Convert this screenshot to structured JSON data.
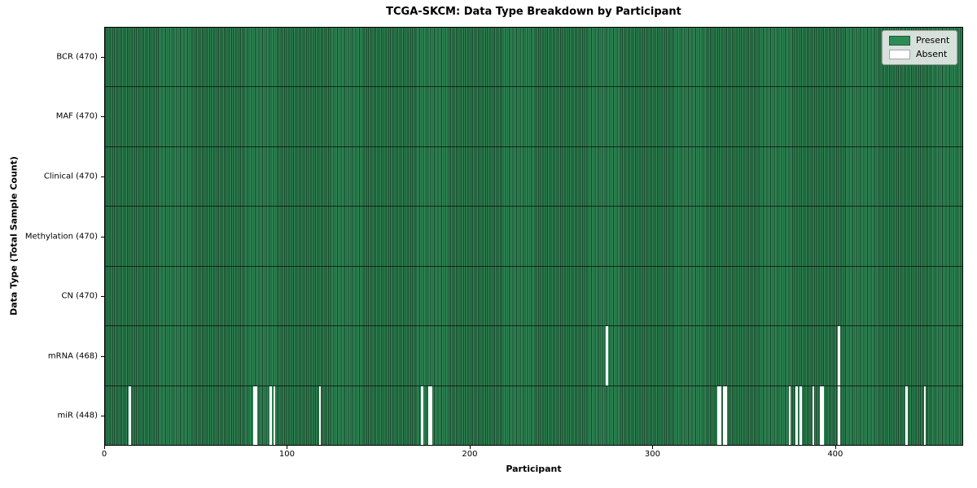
{
  "title": "TCGA-SKCM: Data Type Breakdown by Participant",
  "xlabel": "Participant",
  "ylabel": "Data Type (Total Sample Count)",
  "legend": {
    "present_label": "Present",
    "absent_label": "Absent"
  },
  "chart_data": {
    "type": "heatmap",
    "title": "TCGA-SKCM: Data Type Breakdown by Participant",
    "xlabel": "Participant",
    "ylabel": "Data Type (Total Sample Count)",
    "x_range": [
      0,
      470
    ],
    "x_ticks": [
      0,
      100,
      200,
      300,
      400
    ],
    "n_participants": 470,
    "legend_position": "upper right",
    "legend_entries": [
      "Present",
      "Absent"
    ],
    "colors": {
      "present": "#2e8b57",
      "bar_edge": "#1a4229",
      "absent": "#ffffff",
      "row_separator": "rgba(0,0,0,0.65)",
      "legend_bg": "#f0f0f0"
    },
    "rows": [
      {
        "name": "BCR",
        "label": "BCR (470)",
        "present_count": 470,
        "absent_participants": []
      },
      {
        "name": "MAF",
        "label": "MAF (470)",
        "present_count": 470,
        "absent_participants": []
      },
      {
        "name": "Clinical",
        "label": "Clinical (470)",
        "present_count": 470,
        "absent_participants": []
      },
      {
        "name": "Methylation",
        "label": "Methylation (470)",
        "present_count": 470,
        "absent_participants": []
      },
      {
        "name": "CN",
        "label": "CN (470)",
        "present_count": 470,
        "absent_participants": []
      },
      {
        "name": "mRNA",
        "label": "mRNA (468)",
        "present_count": 468,
        "absent_participants": [
          274,
          401
        ]
      },
      {
        "name": "miR",
        "label": "miR (448)",
        "present_count": 448,
        "absent_participants": [
          13,
          81,
          82,
          90,
          92,
          117,
          173,
          177,
          178,
          335,
          336,
          338,
          339,
          374,
          378,
          380,
          387,
          391,
          392,
          401,
          438,
          448
        ]
      }
    ]
  }
}
